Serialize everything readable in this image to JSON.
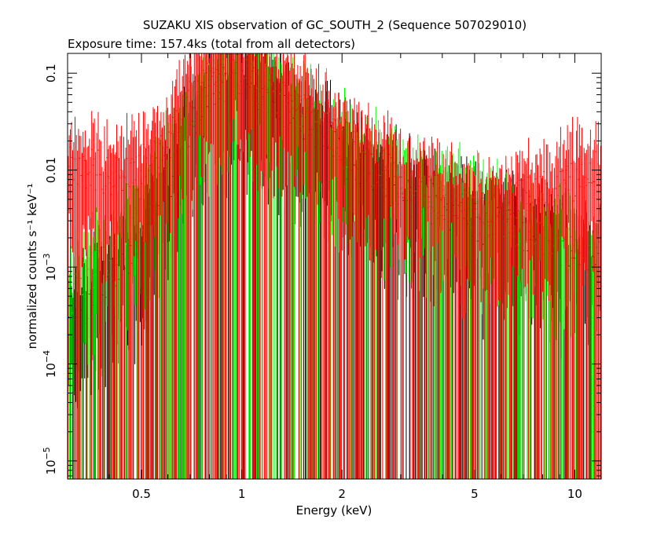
{
  "chart_data": {
    "type": "scatter",
    "title": "SUZAKU XIS observation of GC_SOUTH_2 (Sequence 507029010)",
    "subtitle": "Exposure time: 157.4ks (total from all detectors)",
    "xlabel": "Energy (keV)",
    "ylabel": "normalized counts s⁻¹ keV⁻¹",
    "xscale": "log",
    "yscale": "log",
    "xlim": [
      0.3,
      12
    ],
    "ylim": [
      6.5e-06,
      0.16
    ],
    "grid": false,
    "legend": "none",
    "x_ticks": [
      {
        "value": 0.5,
        "label": "0.5"
      },
      {
        "value": 1,
        "label": "1"
      },
      {
        "value": 2,
        "label": "2"
      },
      {
        "value": 5,
        "label": "5"
      },
      {
        "value": 10,
        "label": "10"
      }
    ],
    "y_ticks": [
      {
        "value": 0.1,
        "label": "0.1"
      },
      {
        "value": 0.01,
        "label": "0.01"
      },
      {
        "value": 0.001,
        "base": "10",
        "exp": "−3"
      },
      {
        "value": 0.0001,
        "base": "10",
        "exp": "−4"
      },
      {
        "value": 1e-05,
        "base": "10",
        "exp": "−5"
      }
    ],
    "series": [
      {
        "color": "#ff0000",
        "spectrum": [
          [
            0.3,
            0.012
          ],
          [
            0.45,
            0.008
          ],
          [
            0.6,
            0.02
          ],
          [
            0.7,
            0.06
          ],
          [
            0.8,
            0.11
          ],
          [
            0.9,
            0.11
          ],
          [
            1.0,
            0.1
          ],
          [
            1.2,
            0.07
          ],
          [
            1.5,
            0.04
          ],
          [
            1.8,
            0.03
          ],
          [
            2.2,
            0.015
          ],
          [
            3.0,
            0.008
          ],
          [
            4.0,
            0.005
          ],
          [
            6.0,
            0.004
          ],
          [
            8.0,
            0.006
          ],
          [
            10.0,
            0.008
          ],
          [
            12.0,
            0.01
          ]
        ]
      },
      {
        "color": "#00ff00",
        "spectrum": [
          [
            0.3,
            0.0005
          ],
          [
            0.45,
            0.002
          ],
          [
            0.6,
            0.01
          ],
          [
            0.7,
            0.04
          ],
          [
            0.8,
            0.08
          ],
          [
            1.0,
            0.09
          ],
          [
            1.2,
            0.06
          ],
          [
            1.5,
            0.035
          ],
          [
            1.8,
            0.025
          ],
          [
            2.2,
            0.013
          ],
          [
            3.0,
            0.007
          ],
          [
            4.0,
            0.005
          ],
          [
            6.0,
            0.003
          ],
          [
            8.0,
            0.002
          ],
          [
            10.0,
            0.0015
          ],
          [
            12.0,
            0.0012
          ]
        ]
      },
      {
        "color": "#000000",
        "spectrum": [
          [
            0.3,
            0.0003
          ],
          [
            0.45,
            0.001
          ],
          [
            0.6,
            0.006
          ],
          [
            0.7,
            0.03
          ],
          [
            0.8,
            0.07
          ],
          [
            1.0,
            0.08
          ],
          [
            1.2,
            0.055
          ],
          [
            1.5,
            0.03
          ],
          [
            1.8,
            0.02
          ],
          [
            2.2,
            0.011
          ],
          [
            3.0,
            0.006
          ],
          [
            4.0,
            0.004
          ],
          [
            6.0,
            0.0025
          ],
          [
            8.0,
            0.002
          ],
          [
            10.0,
            0.0015
          ],
          [
            12.0,
            0.0012
          ]
        ]
      }
    ]
  }
}
